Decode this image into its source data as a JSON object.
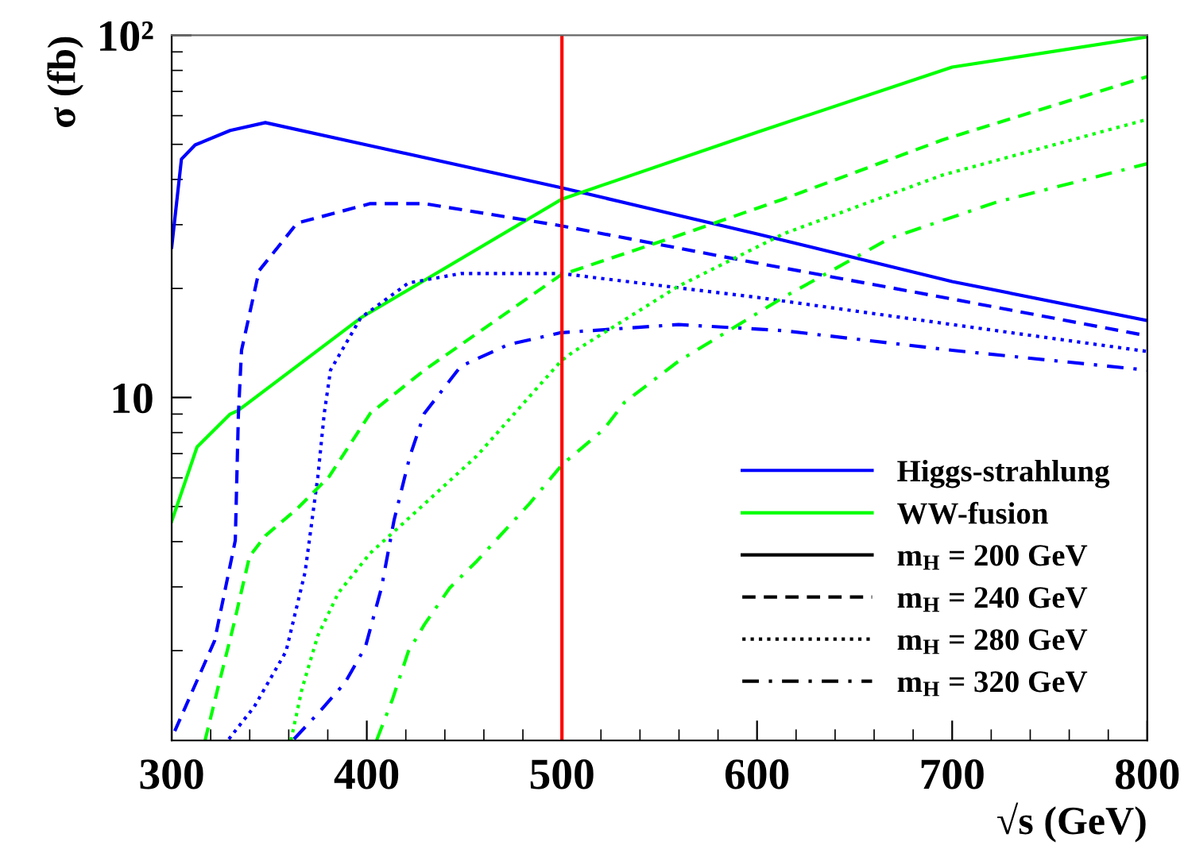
{
  "chart_data": {
    "type": "line",
    "xlabel": "√s (GeV)",
    "ylabel": "σ (fb)",
    "log": "y",
    "xlim": [
      300,
      800
    ],
    "xticks": [
      300,
      400,
      500,
      600,
      700,
      800
    ],
    "ylim": [
      1.13,
      100
    ],
    "yticks": [
      10,
      {
        "value": 100,
        "label": "10²"
      }
    ],
    "grid": false,
    "legend": "bottom right",
    "marker": "none",
    "ref_lines": [
      {
        "axis": "x",
        "value": 500,
        "label": null,
        "color": "#ff0000"
      }
    ],
    "series": [
      {
        "name": "Higgs-strahlung",
        "color": "#0000ff",
        "line_style": "solid",
        "x": [
          300,
          305,
          312,
          330,
          348,
          400,
          500,
          600,
          700,
          800
        ],
        "values": [
          26,
          45.5,
          49.8,
          54.6,
          57.4,
          49.8,
          37.9,
          28.3,
          20.9,
          16.3
        ]
      },
      {
        "name": "WW-fusion",
        "color": "#00ff00",
        "line_style": "solid",
        "x": [
          300,
          313,
          330,
          334,
          397,
          500,
          600,
          700,
          800
        ],
        "values": [
          4.55,
          7.3,
          9.0,
          9.2,
          16.6,
          35.3,
          54,
          81.7,
          99
        ]
      },
      {
        "color": "#0000ff",
        "line_style": "dashed",
        "x": [
          301.6,
          322,
          332.6,
          334.2,
          335.8,
          344.8,
          364.3,
          401.8,
          429.5,
          499.5,
          600,
          700,
          800
        ],
        "values": [
          1.2,
          2.13,
          4.03,
          9.0,
          13.5,
          22.4,
          30.3,
          34.3,
          34.3,
          29.8,
          23.5,
          18.7,
          14.8
        ]
      },
      {
        "color": "#0000ff",
        "line_style": "dotted",
        "x": [
          329.3,
          342.3,
          358.6,
          368.4,
          374.9,
          378.2,
          381.4,
          396.9,
          421.3,
          448.2,
          499.5,
          600,
          700,
          800
        ],
        "values": [
          1.14,
          1.4,
          1.99,
          3.3,
          6.04,
          9.04,
          11.9,
          16.6,
          20.7,
          22.0,
          22.0,
          18.9,
          15.9,
          13.4
        ]
      },
      {
        "color": "#0000ff",
        "line_style": "dashdot",
        "x": [
          362.7,
          376.5,
          388.8,
          399.3,
          407.5,
          414.0,
          422.1,
          429.5,
          448.2,
          472.6,
          499.5,
          559.8,
          613.5,
          700,
          800
        ],
        "values": [
          1.14,
          1.37,
          1.63,
          2.05,
          2.98,
          4.59,
          6.89,
          9.04,
          12.2,
          14.0,
          15.1,
          15.9,
          15.3,
          13.5,
          11.9
        ]
      },
      {
        "color": "#00ff00",
        "line_style": "dashed",
        "x": [
          317.1,
          323.6,
          331.8,
          339.9,
          348.0,
          364.3,
          380.6,
          401.8,
          429.5,
          456.3,
          499.5,
          559.8,
          613.5,
          694.9,
          800
        ],
        "values": [
          1.13,
          1.57,
          2.36,
          3.64,
          4.15,
          4.93,
          6.04,
          9.04,
          11.9,
          15.0,
          21.8,
          28.0,
          35.3,
          51.4,
          76.9
        ]
      },
      {
        "color": "#00ff00",
        "line_style": "dotted",
        "x": [
          361.1,
          366.8,
          374.9,
          385.5,
          401.8,
          429.5,
          456.3,
          499.5,
          505.2,
          559.8,
          613.5,
          694.9,
          800
        ],
        "values": [
          1.13,
          1.57,
          2.2,
          2.89,
          3.72,
          5.08,
          6.89,
          12.6,
          13.3,
          20.3,
          28.3,
          41.1,
          58.6
        ]
      },
      {
        "color": "#00ff00",
        "line_style": "dashdot",
        "x": [
          405.0,
          413.2,
          421.3,
          429.5,
          442.5,
          456.3,
          483.2,
          500.3,
          521.5,
          532.1,
          559.8,
          613.5,
          668.0,
          722.6,
          800
        ],
        "values": [
          1.13,
          1.47,
          1.99,
          2.36,
          2.98,
          3.53,
          5.08,
          6.54,
          8.17,
          9.7,
          12.6,
          18.9,
          27.5,
          34.6,
          44.2
        ]
      },
      {
        "name": "m$_{H}$ = 200 GeV",
        "color": "#000000",
        "line_style": "solid"
      },
      {
        "name": "m$_{H}$ = 240 GeV",
        "color": "#000000",
        "line_style": "dashed"
      },
      {
        "name": "m$_{H}$ = 280 GeV",
        "color": "#000000",
        "line_style": "dotted"
      },
      {
        "name": "m$_{H}$ = 320 GeV",
        "color": "#000000",
        "line_style": "dashdot"
      }
    ]
  }
}
